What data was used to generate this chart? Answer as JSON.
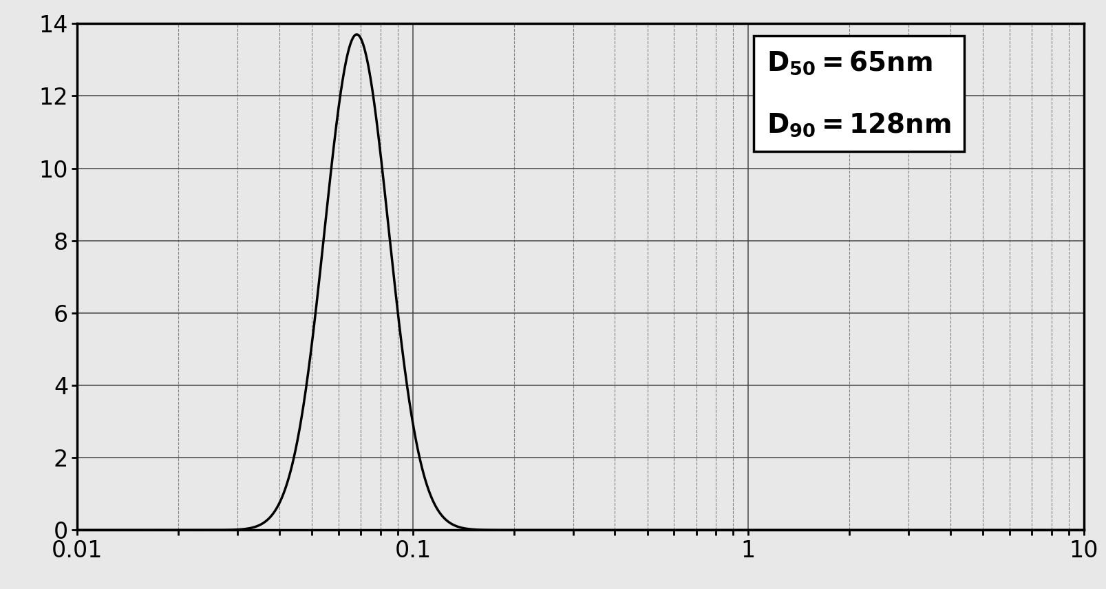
{
  "xlim": [
    0.01,
    10
  ],
  "ylim": [
    0,
    14
  ],
  "yticks": [
    0,
    2,
    4,
    6,
    8,
    10,
    12,
    14
  ],
  "peak_x": 0.068,
  "peak_y": 13.7,
  "sigma": 0.22,
  "line_color": "#000000",
  "line_width": 2.5,
  "background_color": "#e8e8e8",
  "grid_major_color": "#444444",
  "grid_minor_color": "#666666",
  "fig_background": "#e8e8e8",
  "annotation_fontsize": 28,
  "tick_fontsize": 24
}
